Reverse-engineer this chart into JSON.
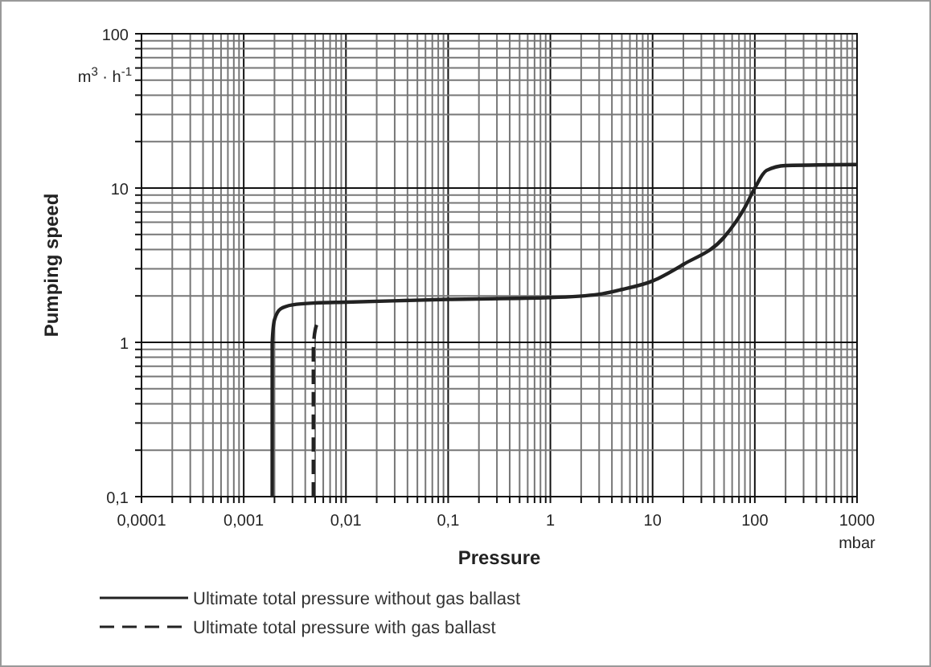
{
  "chart_data": {
    "type": "line",
    "xlabel": "Pressure",
    "ylabel": "Pumping speed",
    "annotations": [
      "m$^{3}$ · h$^{-1}$",
      "mbar"
    ],
    "log": "xy",
    "grid": true,
    "legend": "bottom",
    "xlim": [
      0.0001,
      1000
    ],
    "ylim": [
      0.1,
      100
    ],
    "xticks": [
      {
        "value": 0.0001,
        "label": "0,0001"
      },
      {
        "value": 0.0002,
        "label": null
      },
      {
        "value": 0.0003,
        "label": null
      },
      {
        "value": 0.0004,
        "label": null
      },
      {
        "value": 0.0005,
        "label": null
      },
      {
        "value": 0.0006,
        "label": null
      },
      {
        "value": 0.0007,
        "label": null
      },
      {
        "value": 0.0008,
        "label": null
      },
      {
        "value": 0.0009,
        "label": null
      },
      {
        "value": 0.001,
        "label": "0,001"
      },
      {
        "value": 0.002,
        "label": null
      },
      {
        "value": 0.003,
        "label": null
      },
      {
        "value": 0.004,
        "label": null
      },
      {
        "value": 0.005,
        "label": null
      },
      {
        "value": 0.006,
        "label": null
      },
      {
        "value": 0.007,
        "label": null
      },
      {
        "value": 0.008,
        "label": null
      },
      {
        "value": 0.009,
        "label": null
      },
      {
        "value": 0.01,
        "label": "0,01"
      },
      {
        "value": 0.02,
        "label": null
      },
      {
        "value": 0.03,
        "label": null
      },
      {
        "value": 0.04,
        "label": null
      },
      {
        "value": 0.05,
        "label": null
      },
      {
        "value": 0.06,
        "label": null
      },
      {
        "value": 0.07,
        "label": null
      },
      {
        "value": 0.08,
        "label": null
      },
      {
        "value": 0.09,
        "label": null
      },
      {
        "value": 0.1,
        "label": "0,1"
      },
      {
        "value": 0.2,
        "label": null
      },
      {
        "value": 0.3,
        "label": null
      },
      {
        "value": 0.4,
        "label": null
      },
      {
        "value": 0.5,
        "label": null
      },
      {
        "value": 0.6,
        "label": null
      },
      {
        "value": 0.7,
        "label": null
      },
      {
        "value": 0.8,
        "label": null
      },
      {
        "value": 0.9,
        "label": null
      },
      1,
      {
        "value": 2,
        "label": null
      },
      {
        "value": 3,
        "label": null
      },
      {
        "value": 4,
        "label": null
      },
      {
        "value": 5,
        "label": null
      },
      {
        "value": 6,
        "label": null
      },
      {
        "value": 7,
        "label": null
      },
      {
        "value": 8,
        "label": null
      },
      {
        "value": 9,
        "label": null
      },
      10,
      {
        "value": 20,
        "label": null
      },
      {
        "value": 30,
        "label": null
      },
      {
        "value": 40,
        "label": null
      },
      {
        "value": 50,
        "label": null
      },
      {
        "value": 60,
        "label": null
      },
      {
        "value": 70,
        "label": null
      },
      {
        "value": 80,
        "label": null
      },
      {
        "value": 90,
        "label": null
      },
      100,
      {
        "value": 200,
        "label": null
      },
      {
        "value": 300,
        "label": null
      },
      {
        "value": 400,
        "label": null
      },
      {
        "value": 500,
        "label": null
      },
      {
        "value": 600,
        "label": null
      },
      {
        "value": 700,
        "label": null
      },
      {
        "value": 800,
        "label": null
      },
      {
        "value": 900,
        "label": null
      },
      1000
    ],
    "yticks": [
      {
        "value": 0.1,
        "label": "0,1"
      },
      {
        "value": 0.2,
        "label": null
      },
      {
        "value": 0.3,
        "label": null
      },
      {
        "value": 0.4,
        "label": null
      },
      {
        "value": 0.5,
        "label": null
      },
      {
        "value": 0.6,
        "label": null
      },
      {
        "value": 0.7,
        "label": null
      },
      {
        "value": 0.8,
        "label": null
      },
      {
        "value": 0.9,
        "label": null
      },
      1,
      {
        "value": 2,
        "label": null
      },
      {
        "value": 3,
        "label": null
      },
      {
        "value": 4,
        "label": null
      },
      {
        "value": 5,
        "label": null
      },
      {
        "value": 6,
        "label": null
      },
      {
        "value": 7,
        "label": null
      },
      {
        "value": 8,
        "label": null
      },
      {
        "value": 9,
        "label": null
      },
      10,
      {
        "value": 20,
        "label": null
      },
      {
        "value": 30,
        "label": null
      },
      {
        "value": 40,
        "label": null
      },
      {
        "value": 50,
        "label": null
      },
      {
        "value": 60,
        "label": null
      },
      {
        "value": 70,
        "label": null
      },
      {
        "value": 80,
        "label": null
      },
      {
        "value": 90,
        "label": null
      },
      100
    ],
    "series": [
      {
        "name": "Ultimate total pressure without gas ballast",
        "color": "#222222",
        "line_style": "solid",
        "x": [
          0.0019,
          0.0019,
          0.002,
          0.0023,
          0.003,
          0.005,
          0.01,
          0.1,
          1,
          3,
          5,
          10,
          20,
          50,
          80,
          100,
          130,
          200,
          1000
        ],
        "values": [
          0.1,
          1.0,
          1.4,
          1.65,
          1.75,
          1.8,
          1.82,
          1.9,
          1.95,
          2.05,
          2.2,
          2.5,
          3.2,
          4.8,
          7.5,
          10,
          13,
          14,
          14.2
        ]
      },
      {
        "name": "Ultimate total pressure with gas ballast",
        "color": "#222222",
        "line_style": "dashed",
        "x": [
          0.0048,
          0.0048,
          0.005,
          0.0055
        ],
        "values": [
          0.1,
          0.9,
          1.2,
          1.4
        ]
      }
    ]
  }
}
